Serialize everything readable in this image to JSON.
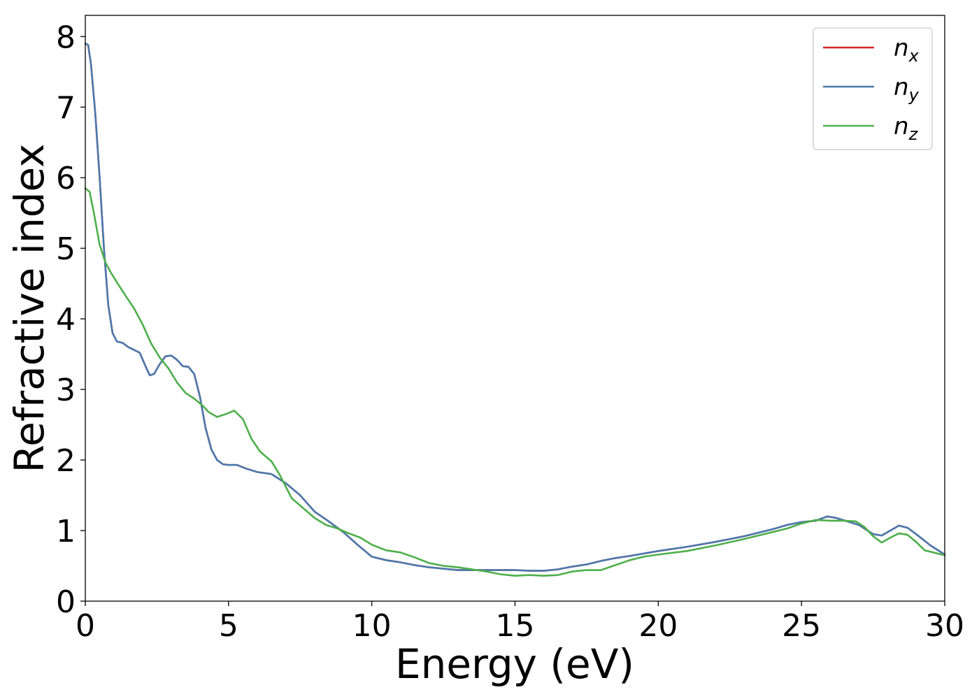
{
  "chart_data": {
    "type": "line",
    "xlabel": "Energy (eV)",
    "ylabel": "Refractive index",
    "xlim": [
      0,
      30
    ],
    "ylim": [
      0,
      8.3
    ],
    "xticks": [
      "0",
      "5",
      "10",
      "15",
      "20",
      "25",
      "30"
    ],
    "yticks": [
      "0",
      "1",
      "2",
      "3",
      "4",
      "5",
      "6",
      "7",
      "8"
    ],
    "grid": false,
    "legend_position": "top-right",
    "series": [
      {
        "name": "n_x",
        "label_main": "n",
        "label_sub": "x",
        "color": "#d62728",
        "points": [
          [
            0,
            7.9
          ],
          [
            0.1,
            7.88
          ],
          [
            0.2,
            7.6
          ],
          [
            0.35,
            6.9
          ],
          [
            0.5,
            6.0
          ],
          [
            0.65,
            5.0
          ],
          [
            0.8,
            4.2
          ],
          [
            0.95,
            3.8
          ],
          [
            1.1,
            3.68
          ],
          [
            1.3,
            3.66
          ],
          [
            1.5,
            3.6
          ],
          [
            1.7,
            3.56
          ],
          [
            1.9,
            3.52
          ],
          [
            2.1,
            3.33
          ],
          [
            2.25,
            3.2
          ],
          [
            2.4,
            3.22
          ],
          [
            2.6,
            3.36
          ],
          [
            2.8,
            3.47
          ],
          [
            3.0,
            3.48
          ],
          [
            3.2,
            3.42
          ],
          [
            3.4,
            3.33
          ],
          [
            3.6,
            3.32
          ],
          [
            3.8,
            3.22
          ],
          [
            4.0,
            2.9
          ],
          [
            4.2,
            2.45
          ],
          [
            4.4,
            2.15
          ],
          [
            4.6,
            2.0
          ],
          [
            4.8,
            1.94
          ],
          [
            5.0,
            1.93
          ],
          [
            5.3,
            1.93
          ],
          [
            5.6,
            1.88
          ],
          [
            6.0,
            1.83
          ],
          [
            6.5,
            1.8
          ],
          [
            7.0,
            1.67
          ],
          [
            7.5,
            1.5
          ],
          [
            8.0,
            1.27
          ],
          [
            8.5,
            1.13
          ],
          [
            9.0,
            0.98
          ],
          [
            9.5,
            0.8
          ],
          [
            10.0,
            0.63
          ],
          [
            10.5,
            0.58
          ],
          [
            11.0,
            0.55
          ],
          [
            11.5,
            0.51
          ],
          [
            12.0,
            0.48
          ],
          [
            13.0,
            0.44
          ],
          [
            14.0,
            0.44
          ],
          [
            15.0,
            0.44
          ],
          [
            15.5,
            0.43
          ],
          [
            16.0,
            0.43
          ],
          [
            16.5,
            0.45
          ],
          [
            17.0,
            0.49
          ],
          [
            17.5,
            0.52
          ],
          [
            18.0,
            0.57
          ],
          [
            18.5,
            0.61
          ],
          [
            19.0,
            0.64
          ],
          [
            20.0,
            0.71
          ],
          [
            21.0,
            0.77
          ],
          [
            22.0,
            0.84
          ],
          [
            23.0,
            0.92
          ],
          [
            24.0,
            1.02
          ],
          [
            24.5,
            1.08
          ],
          [
            25.0,
            1.12
          ],
          [
            25.5,
            1.14
          ],
          [
            25.9,
            1.2
          ],
          [
            26.2,
            1.18
          ],
          [
            26.6,
            1.13
          ],
          [
            27.0,
            1.08
          ],
          [
            27.5,
            0.95
          ],
          [
            27.8,
            0.93
          ],
          [
            28.1,
            1.0
          ],
          [
            28.4,
            1.07
          ],
          [
            28.7,
            1.04
          ],
          [
            29.0,
            0.95
          ],
          [
            29.5,
            0.79
          ],
          [
            30.0,
            0.66
          ]
        ]
      },
      {
        "name": "n_y",
        "label_main": "n",
        "label_sub": "y",
        "color": "#4a7aae",
        "points": [
          [
            0,
            7.9
          ],
          [
            0.1,
            7.88
          ],
          [
            0.2,
            7.6
          ],
          [
            0.35,
            6.9
          ],
          [
            0.5,
            6.0
          ],
          [
            0.65,
            5.0
          ],
          [
            0.8,
            4.2
          ],
          [
            0.95,
            3.8
          ],
          [
            1.1,
            3.68
          ],
          [
            1.3,
            3.66
          ],
          [
            1.5,
            3.6
          ],
          [
            1.7,
            3.56
          ],
          [
            1.9,
            3.52
          ],
          [
            2.1,
            3.33
          ],
          [
            2.25,
            3.2
          ],
          [
            2.4,
            3.22
          ],
          [
            2.6,
            3.36
          ],
          [
            2.8,
            3.47
          ],
          [
            3.0,
            3.48
          ],
          [
            3.2,
            3.42
          ],
          [
            3.4,
            3.33
          ],
          [
            3.6,
            3.32
          ],
          [
            3.8,
            3.22
          ],
          [
            4.0,
            2.9
          ],
          [
            4.2,
            2.45
          ],
          [
            4.4,
            2.15
          ],
          [
            4.6,
            2.0
          ],
          [
            4.8,
            1.94
          ],
          [
            5.0,
            1.93
          ],
          [
            5.3,
            1.93
          ],
          [
            5.6,
            1.88
          ],
          [
            6.0,
            1.83
          ],
          [
            6.5,
            1.8
          ],
          [
            7.0,
            1.67
          ],
          [
            7.5,
            1.5
          ],
          [
            8.0,
            1.27
          ],
          [
            8.5,
            1.13
          ],
          [
            9.0,
            0.98
          ],
          [
            9.5,
            0.8
          ],
          [
            10.0,
            0.63
          ],
          [
            10.5,
            0.58
          ],
          [
            11.0,
            0.55
          ],
          [
            11.5,
            0.51
          ],
          [
            12.0,
            0.48
          ],
          [
            13.0,
            0.44
          ],
          [
            14.0,
            0.44
          ],
          [
            15.0,
            0.44
          ],
          [
            15.5,
            0.43
          ],
          [
            16.0,
            0.43
          ],
          [
            16.5,
            0.45
          ],
          [
            17.0,
            0.49
          ],
          [
            17.5,
            0.52
          ],
          [
            18.0,
            0.57
          ],
          [
            18.5,
            0.61
          ],
          [
            19.0,
            0.64
          ],
          [
            20.0,
            0.71
          ],
          [
            21.0,
            0.77
          ],
          [
            22.0,
            0.84
          ],
          [
            23.0,
            0.92
          ],
          [
            24.0,
            1.02
          ],
          [
            24.5,
            1.08
          ],
          [
            25.0,
            1.12
          ],
          [
            25.5,
            1.14
          ],
          [
            25.9,
            1.2
          ],
          [
            26.2,
            1.18
          ],
          [
            26.6,
            1.13
          ],
          [
            27.0,
            1.08
          ],
          [
            27.5,
            0.95
          ],
          [
            27.8,
            0.93
          ],
          [
            28.1,
            1.0
          ],
          [
            28.4,
            1.07
          ],
          [
            28.7,
            1.04
          ],
          [
            29.0,
            0.95
          ],
          [
            29.5,
            0.79
          ],
          [
            30.0,
            0.66
          ]
        ]
      },
      {
        "name": "n_z",
        "label_main": "n",
        "label_sub": "z",
        "color": "#4daf4a",
        "points": [
          [
            0,
            5.85
          ],
          [
            0.15,
            5.8
          ],
          [
            0.3,
            5.5
          ],
          [
            0.5,
            5.05
          ],
          [
            0.7,
            4.8
          ],
          [
            0.9,
            4.65
          ],
          [
            1.1,
            4.52
          ],
          [
            1.4,
            4.33
          ],
          [
            1.7,
            4.15
          ],
          [
            2.0,
            3.92
          ],
          [
            2.3,
            3.65
          ],
          [
            2.6,
            3.45
          ],
          [
            2.9,
            3.3
          ],
          [
            3.2,
            3.1
          ],
          [
            3.5,
            2.95
          ],
          [
            3.8,
            2.87
          ],
          [
            4.1,
            2.77
          ],
          [
            4.3,
            2.68
          ],
          [
            4.6,
            2.61
          ],
          [
            4.9,
            2.65
          ],
          [
            5.2,
            2.7
          ],
          [
            5.5,
            2.58
          ],
          [
            5.8,
            2.3
          ],
          [
            6.1,
            2.12
          ],
          [
            6.5,
            1.98
          ],
          [
            6.8,
            1.78
          ],
          [
            7.2,
            1.46
          ],
          [
            7.6,
            1.32
          ],
          [
            8.0,
            1.18
          ],
          [
            8.4,
            1.08
          ],
          [
            8.8,
            1.03
          ],
          [
            9.2,
            0.96
          ],
          [
            9.6,
            0.9
          ],
          [
            10.0,
            0.8
          ],
          [
            10.5,
            0.72
          ],
          [
            11.0,
            0.69
          ],
          [
            11.5,
            0.62
          ],
          [
            12.0,
            0.54
          ],
          [
            12.5,
            0.5
          ],
          [
            13.0,
            0.48
          ],
          [
            13.5,
            0.45
          ],
          [
            14.0,
            0.42
          ],
          [
            14.5,
            0.38
          ],
          [
            15.0,
            0.36
          ],
          [
            15.5,
            0.37
          ],
          [
            16.0,
            0.36
          ],
          [
            16.5,
            0.37
          ],
          [
            17.0,
            0.42
          ],
          [
            17.5,
            0.44
          ],
          [
            18.0,
            0.44
          ],
          [
            18.5,
            0.51
          ],
          [
            19.0,
            0.58
          ],
          [
            19.5,
            0.63
          ],
          [
            20.0,
            0.66
          ],
          [
            21.0,
            0.71
          ],
          [
            22.0,
            0.79
          ],
          [
            23.0,
            0.88
          ],
          [
            24.0,
            0.98
          ],
          [
            24.5,
            1.03
          ],
          [
            25.0,
            1.1
          ],
          [
            25.5,
            1.15
          ],
          [
            26.0,
            1.14
          ],
          [
            26.5,
            1.14
          ],
          [
            26.9,
            1.13
          ],
          [
            27.2,
            1.05
          ],
          [
            27.5,
            0.92
          ],
          [
            27.8,
            0.83
          ],
          [
            28.1,
            0.9
          ],
          [
            28.4,
            0.96
          ],
          [
            28.7,
            0.94
          ],
          [
            29.0,
            0.84
          ],
          [
            29.3,
            0.72
          ],
          [
            30.0,
            0.65
          ]
        ]
      }
    ]
  }
}
